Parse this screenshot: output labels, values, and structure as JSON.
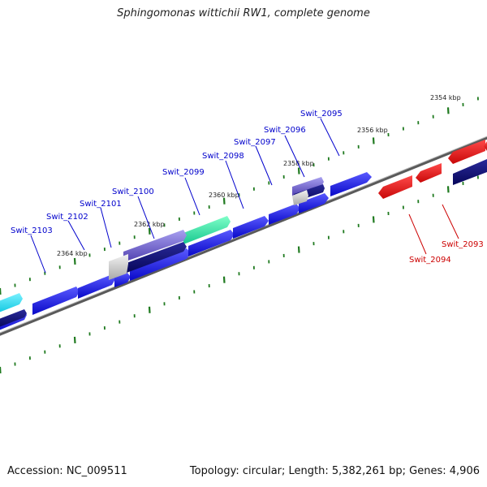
{
  "title": "Sphingomonas wittichii RW1, complete genome",
  "footer": {
    "accession": "Accession: NC_009511",
    "summary": "Topology: circular; Length: 5,382,261 bp; Genes: 4,906"
  },
  "colors": {
    "forward_gene": "#1414e6",
    "reverse_gene": "#e61414",
    "backbone": "#808080",
    "tick": "#1f7a1f",
    "forward_label": "#0000cc",
    "reverse_label": "#cc0000"
  },
  "scale_ticks": [
    {
      "label": "2354 kbp"
    },
    {
      "label": "2356 kbp"
    },
    {
      "label": "2358 kbp"
    },
    {
      "label": "2360 kbp"
    },
    {
      "label": "2362 kbp"
    },
    {
      "label": "2364 kbp"
    }
  ],
  "gene_labels": [
    {
      "name": "Swit_2095",
      "strand": "forward"
    },
    {
      "name": "Swit_2096",
      "strand": "forward"
    },
    {
      "name": "Swit_2097",
      "strand": "forward"
    },
    {
      "name": "Swit_2098",
      "strand": "forward"
    },
    {
      "name": "Swit_2099",
      "strand": "forward"
    },
    {
      "name": "Swit_2100",
      "strand": "forward"
    },
    {
      "name": "Swit_2101",
      "strand": "forward"
    },
    {
      "name": "Swit_2102",
      "strand": "forward"
    },
    {
      "name": "Swit_2103",
      "strand": "forward"
    },
    {
      "name": "Swit_2094",
      "strand": "reverse"
    },
    {
      "name": "Swit_2093",
      "strand": "reverse"
    }
  ]
}
